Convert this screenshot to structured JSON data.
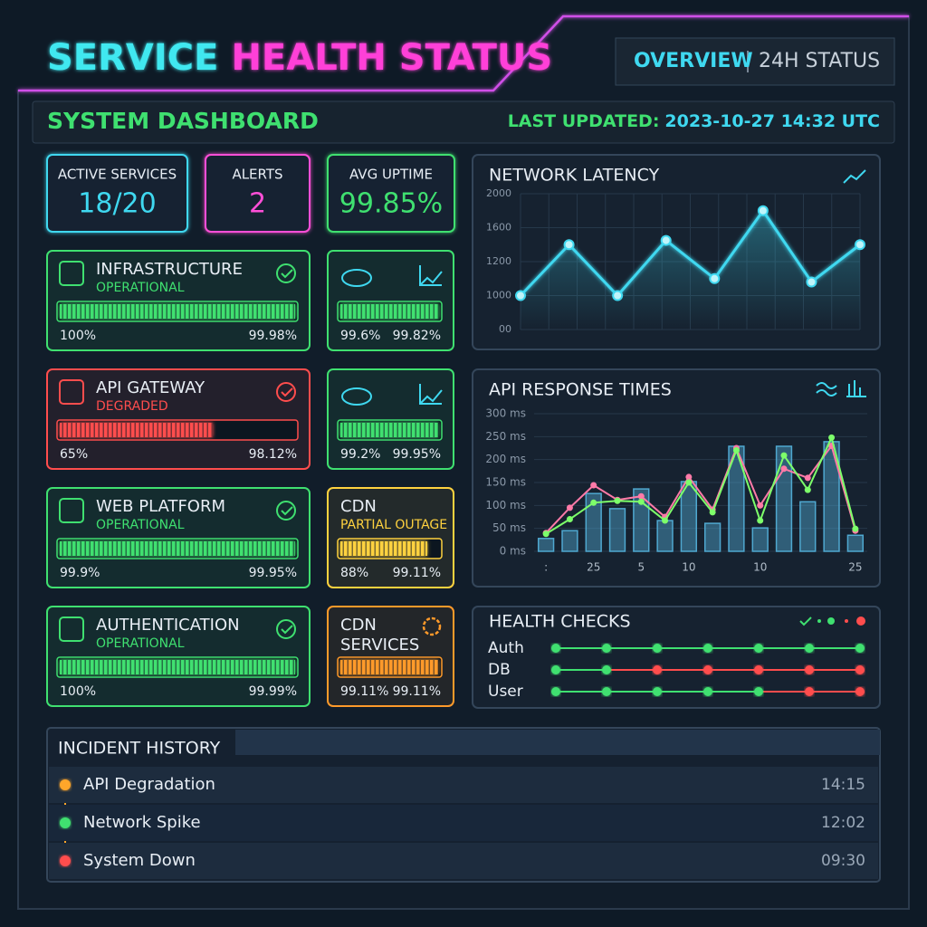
{
  "header": {
    "title": [
      "SERVICE",
      "HEALTH STATUS"
    ],
    "tabs": [
      "OVERVIEW",
      "24H STATUS"
    ]
  },
  "subheader": {
    "title": "SYSTEM DASHBOARD",
    "updated_label": "LAST UPDATED:",
    "updated_value": "2023-10-27 14:32 UTC"
  },
  "stats": [
    {
      "label": "ACTIVE SERVICES",
      "value": "18/20",
      "color": "#3fd8f0"
    },
    {
      "label": "ALERTS",
      "value": "2",
      "color": "#ff4fd8"
    },
    {
      "label": "AVG UPTIME",
      "value": "99.85%",
      "color": "#3fe070"
    }
  ],
  "services": [
    {
      "name": [
        "INFRASTRUCTURE"
      ],
      "status": "OPERATIONAL",
      "bar": 100,
      "bar_label": "100%",
      "uptime": "99.98%",
      "color": "#3fe070"
    },
    {
      "name": [
        "API GATEWAY"
      ],
      "status": "DEGRADED",
      "bar": 65,
      "bar_label": "65%",
      "uptime": "98.12%",
      "color": "#ff4d4d"
    },
    {
      "name": [
        "WEB PLATFORM"
      ],
      "status": "OPERATIONAL",
      "bar": 99.9,
      "bar_label": "99.9%",
      "uptime": "99.95%",
      "color": "#3fe070"
    },
    {
      "name": [
        "AUTHENTICATION"
      ],
      "status": "OPERATIONAL",
      "bar": 100,
      "bar_label": "100%",
      "uptime": "99.99%",
      "color": "#3fe070"
    }
  ],
  "mini_services": [
    {
      "bar": 99.6,
      "bar_label": "99.6%",
      "uptime": "99.82%",
      "color": "#3fe070"
    },
    {
      "bar": 99.2,
      "bar_label": "99.2%",
      "uptime": "99.95%",
      "color": "#3fe070"
    },
    {
      "name": [
        "CDN"
      ],
      "status": "PARTIAL OUTAGE",
      "bar": 88,
      "bar_label": "88%",
      "uptime": "99.11%",
      "color": "#ffd23f"
    },
    {
      "name": [
        "CDN",
        "SERVICES"
      ],
      "bar": 99.11,
      "bar_label": "99.11%",
      "uptime": "99.11%",
      "color": "#ff9a2a"
    }
  ],
  "latency": {
    "type": "line",
    "title": "NETWORK LATENCY",
    "values": [
      1000,
      1400,
      1000,
      1450,
      1100,
      1800,
      1080,
      1400
    ],
    "color": "#3fd8f0",
    "ylim": [
      0,
      2000
    ],
    "yticks": [
      {
        "value": 0,
        "label": "00"
      },
      1000,
      1200,
      1600,
      2000
    ],
    "grid": true
  },
  "response": {
    "type": "bar-line",
    "title": "API RESPONSE TIMES",
    "categories": [
      ":",
      null,
      "25",
      null,
      "5",
      null,
      "10",
      null,
      null,
      "10",
      null,
      null,
      null,
      "25"
    ],
    "values": [
      28,
      45,
      126,
      93,
      136,
      67,
      152,
      61,
      229,
      51,
      229,
      108,
      239,
      35
    ],
    "color": "#4fa8d0",
    "series": [
      {
        "color": "#ff7aa8",
        "values": [
          40,
          95,
          144,
          112,
          120,
          75,
          162,
          91,
          225,
          100,
          180,
          160,
          230,
          45
        ]
      },
      {
        "color": "#7dff6a",
        "values": [
          38,
          70,
          106,
          110,
          108,
          67,
          150,
          85,
          220,
          67,
          209,
          134,
          248,
          49
        ]
      }
    ],
    "ylim": [
      0,
      300
    ],
    "yticks": [
      {
        "value": 0,
        "label": "0 ms"
      },
      {
        "value": 50,
        "label": "50 ms"
      },
      {
        "value": 100,
        "label": "100 ms"
      },
      {
        "value": 150,
        "label": "150 ms"
      },
      {
        "value": 200,
        "label": "200 ms"
      },
      {
        "value": 250,
        "label": "250 ms"
      },
      {
        "value": 300,
        "label": "300 ms"
      }
    ],
    "grid": true
  },
  "health": {
    "title": "HEALTH CHECKS",
    "state_colors": {
      "up": "#3fe070",
      "down": "#ff4d4d"
    },
    "rows": [
      {
        "name": "Auth",
        "states": [
          "up",
          "up",
          "up",
          "up",
          "up",
          "up",
          "up"
        ]
      },
      {
        "name": "DB",
        "states": [
          "up",
          "up",
          "down",
          "down",
          "down",
          "down",
          "down"
        ]
      },
      {
        "name": "User",
        "states": [
          "up",
          "up",
          "up",
          "up",
          "up",
          "down",
          "down"
        ]
      }
    ]
  },
  "incidents": {
    "title": "INCIDENT HISTORY",
    "items": [
      {
        "name": "API Degradation",
        "time": "14:15",
        "color": "#ffa62a"
      },
      {
        "name": "Network Spike",
        "time": "12:02",
        "color": "#3fe070"
      },
      {
        "name": "System Down",
        "time": "09:30",
        "color": "#ff4d4d"
      }
    ]
  }
}
